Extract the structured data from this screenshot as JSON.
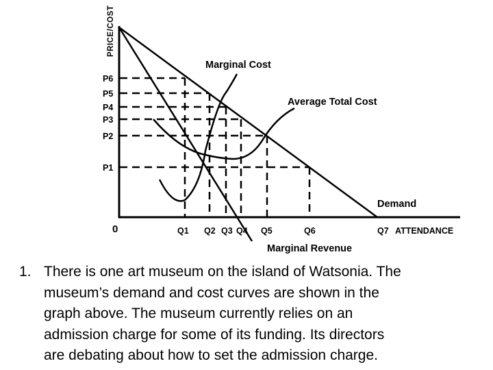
{
  "chart_data": {
    "type": "line",
    "ylabel": "PRICE/COST",
    "origin_label": "0",
    "y_ticks": [
      "P6",
      "P5",
      "P4",
      "P3",
      "P2",
      "P1"
    ],
    "x_ticks": [
      "Q1",
      "Q2",
      "Q3",
      "Q4",
      "Q5",
      "Q6",
      "Q7"
    ],
    "x_axis_title": "ATTENDANCE",
    "curves": [
      {
        "label": "Demand"
      },
      {
        "label": "Marginal Revenue"
      },
      {
        "label": "Marginal Cost"
      },
      {
        "label": "Average Total Cost"
      }
    ]
  },
  "question": {
    "number": "1.",
    "lines": [
      "There is one art museum on the island of Watsonia.  The",
      "museum’s demand and cost curves are shown in the",
      "graph above.  The museum currently relies on an",
      "admission charge for some of its funding.  Its directors",
      "are debating about how to set the admission charge."
    ]
  }
}
